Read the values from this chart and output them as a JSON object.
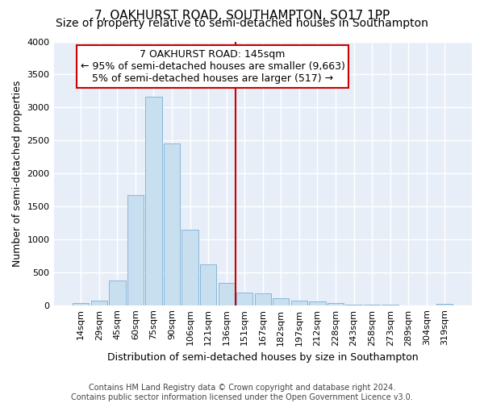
{
  "title": "7, OAKHURST ROAD, SOUTHAMPTON, SO17 1PP",
  "subtitle": "Size of property relative to semi-detached houses in Southampton",
  "xlabel": "Distribution of semi-detached houses by size in Southampton",
  "ylabel": "Number of semi-detached properties",
  "footer_line1": "Contains HM Land Registry data © Crown copyright and database right 2024.",
  "footer_line2": "Contains public sector information licensed under the Open Government Licence v3.0.",
  "bar_labels": [
    "14sqm",
    "29sqm",
    "45sqm",
    "60sqm",
    "75sqm",
    "90sqm",
    "106sqm",
    "121sqm",
    "136sqm",
    "151sqm",
    "167sqm",
    "182sqm",
    "197sqm",
    "212sqm",
    "228sqm",
    "243sqm",
    "258sqm",
    "273sqm",
    "289sqm",
    "304sqm",
    "319sqm"
  ],
  "bar_values": [
    30,
    75,
    370,
    1670,
    3160,
    2450,
    1150,
    625,
    340,
    190,
    175,
    110,
    70,
    55,
    30,
    10,
    5,
    3,
    2,
    2,
    20
  ],
  "bar_color": "#c8dff0",
  "bar_edgecolor": "#7aaed4",
  "vline_color": "#cc0000",
  "annotation_line1": "7 OAKHURST ROAD: 145sqm",
  "annotation_line2": "← 95% of semi-detached houses are smaller (9,663)",
  "annotation_line3": "5% of semi-detached houses are larger (517) →",
  "annotation_box_facecolor": "#ffffff",
  "annotation_box_edgecolor": "#cc0000",
  "ylim": [
    0,
    4000
  ],
  "yticks": [
    0,
    500,
    1000,
    1500,
    2000,
    2500,
    3000,
    3500,
    4000
  ],
  "plot_bg_color": "#e8eef8",
  "fig_bg_color": "#ffffff",
  "grid_color": "#ffffff",
  "title_fontsize": 11,
  "subtitle_fontsize": 10,
  "xlabel_fontsize": 9,
  "ylabel_fontsize": 9,
  "tick_fontsize": 8,
  "annotation_fontsize": 9,
  "footer_fontsize": 7
}
